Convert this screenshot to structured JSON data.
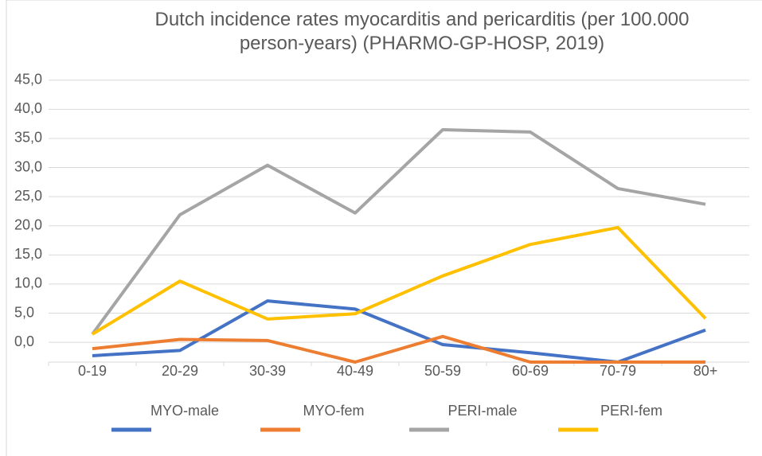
{
  "chart_data": {
    "type": "line",
    "title": "Dutch incidence rates myocarditis and pericarditis (per 100.000 person-years) (PHARMO-GP-HOSP, 2019)",
    "categories": [
      "0-19",
      "20-29",
      "30-39",
      "40-49",
      "50-59",
      "60-69",
      "70-79",
      "80+"
    ],
    "series": [
      {
        "name": "MYO-male",
        "color": "#4472c4",
        "values": [
          -2.3,
          -1.4,
          7.1,
          5.7,
          -0.4,
          -1.8,
          -3.4,
          2.1
        ]
      },
      {
        "name": "MYO-fem",
        "color": "#ed7d31",
        "values": [
          -1.1,
          0.5,
          0.3,
          -3.4,
          1.0,
          -3.4,
          -3.4,
          -3.4
        ]
      },
      {
        "name": "PERI-male",
        "color": "#a5a5a5",
        "values": [
          1.4,
          21.9,
          30.4,
          22.2,
          36.5,
          36.1,
          26.4,
          23.7
        ]
      },
      {
        "name": "PERI-fem",
        "color": "#ffc000",
        "values": [
          1.4,
          10.5,
          4.0,
          4.9,
          11.4,
          16.8,
          19.7,
          4.1
        ]
      }
    ],
    "ylim": [
      -3.4,
      46.2
    ],
    "yticks": [
      {
        "value": 0,
        "label": "0,0"
      },
      {
        "value": 5,
        "label": "5,0"
      },
      {
        "value": 10,
        "label": "10,0"
      },
      {
        "value": 15,
        "label": "15,0"
      },
      {
        "value": 20,
        "label": "20,0"
      },
      {
        "value": 25,
        "label": "25,0"
      },
      {
        "value": 30,
        "label": "30,0"
      },
      {
        "value": 35,
        "label": "35,0"
      },
      {
        "value": 40,
        "label": "40,0"
      },
      {
        "value": 45,
        "label": "45,0"
      }
    ],
    "grid": true,
    "legend": "bottom"
  }
}
